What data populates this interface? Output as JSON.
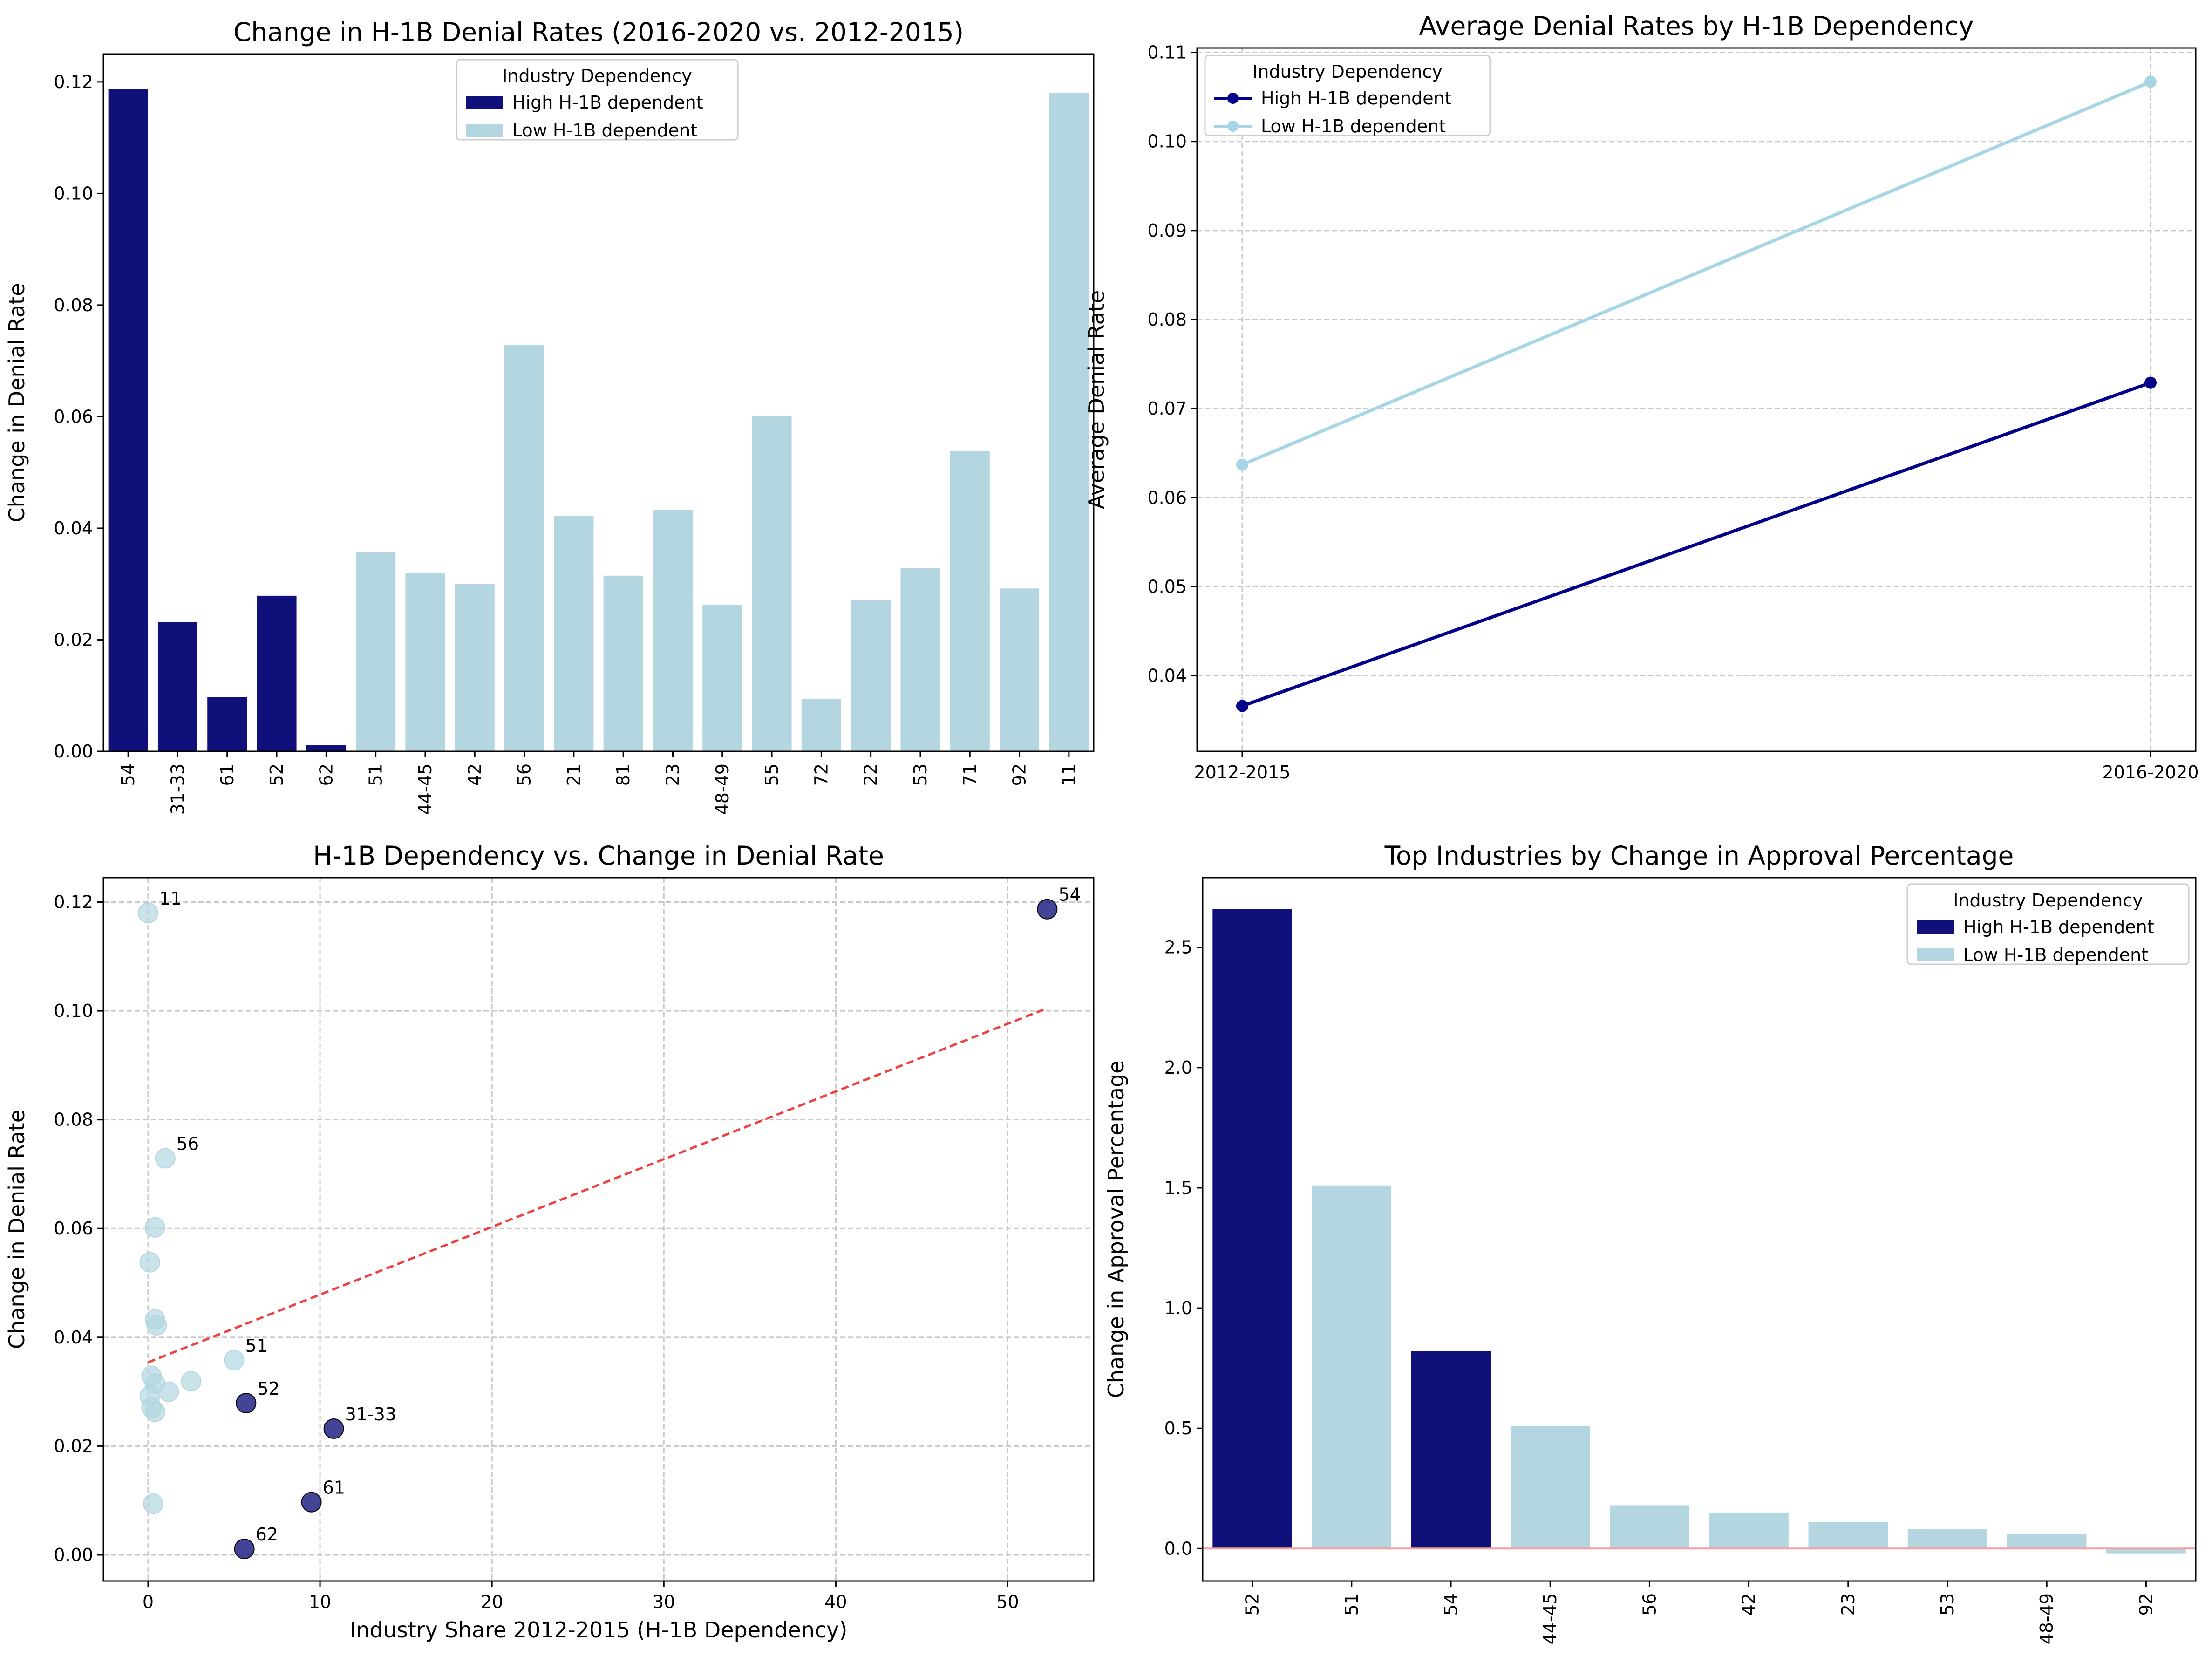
{
  "colors": {
    "high": "#10107a",
    "low": "#b3d6e0",
    "low_line": "#a6d5e6",
    "high_line": "#00008b",
    "trend": "#f04040",
    "zero_line": "#f5a0a0",
    "grid": "#c8c8c8"
  },
  "chart_data": [
    {
      "type": "bar",
      "title": "Change in H-1B Denial Rates (2016-2020 vs. 2012-2015)",
      "xlabel": "",
      "ylabel": "Change in Denial Rate",
      "ylim": [
        0,
        0.125
      ],
      "yticks": [
        0.0,
        0.02,
        0.04,
        0.06,
        0.08,
        0.1,
        0.12
      ],
      "ytick_labels": [
        "0.00",
        "0.02",
        "0.04",
        "0.06",
        "0.08",
        "0.10",
        "0.12"
      ],
      "grid": false,
      "categories": [
        "54",
        "31-33",
        "61",
        "52",
        "62",
        "51",
        "44-45",
        "42",
        "56",
        "21",
        "81",
        "23",
        "48-49",
        "55",
        "72",
        "22",
        "53",
        "71",
        "92",
        "11"
      ],
      "values": [
        0.1187,
        0.0232,
        0.0097,
        0.0279,
        0.0011,
        0.0358,
        0.0319,
        0.03,
        0.0729,
        0.0422,
        0.0315,
        0.0433,
        0.0263,
        0.0602,
        0.0094,
        0.0271,
        0.0329,
        0.0538,
        0.0292,
        0.118
      ],
      "groups": [
        "high",
        "high",
        "high",
        "high",
        "high",
        "low",
        "low",
        "low",
        "low",
        "low",
        "low",
        "low",
        "low",
        "low",
        "low",
        "low",
        "low",
        "low",
        "low",
        "low"
      ],
      "legend": {
        "title": "Industry Dependency",
        "placement": "top-center",
        "entries": [
          "High H-1B dependent",
          "Low H-1B dependent"
        ]
      }
    },
    {
      "type": "line",
      "title": "Average Denial Rates by H-1B Dependency",
      "xlabel": "",
      "ylabel": "Average Denial Rate",
      "ylim": [
        0.0315,
        0.1105
      ],
      "yticks": [
        0.04,
        0.05,
        0.06,
        0.07,
        0.08,
        0.09,
        0.1,
        0.11
      ],
      "ytick_labels": [
        "0.04",
        "0.05",
        "0.06",
        "0.07",
        "0.08",
        "0.09",
        "0.10",
        "0.11"
      ],
      "grid": true,
      "categories": [
        "2012-2015",
        "2016-2020"
      ],
      "series": [
        {
          "name": "High H-1B dependent",
          "group": "high",
          "values": [
            0.0366,
            0.0729
          ]
        },
        {
          "name": "Low H-1B dependent",
          "group": "low",
          "values": [
            0.0637,
            0.1067
          ]
        }
      ],
      "legend": {
        "title": "Industry Dependency",
        "placement": "top-left",
        "entries": [
          "High H-1B dependent",
          "Low H-1B dependent"
        ]
      }
    },
    {
      "type": "scatter",
      "title": "H-1B Dependency vs. Change in Denial Rate",
      "xlabel": "Industry Share 2012-2015 (H-1B Dependency)",
      "ylabel": "Change in Denial Rate",
      "xlim": [
        -2.6,
        55
      ],
      "ylim": [
        -0.0048,
        0.1245
      ],
      "xticks": [
        0,
        10,
        20,
        30,
        40,
        50
      ],
      "xtick_labels": [
        "0",
        "10",
        "20",
        "30",
        "40",
        "50"
      ],
      "yticks": [
        0.0,
        0.02,
        0.04,
        0.06,
        0.08,
        0.1,
        0.12
      ],
      "ytick_labels": [
        "0.00",
        "0.02",
        "0.04",
        "0.06",
        "0.08",
        "0.10",
        "0.12"
      ],
      "grid": true,
      "points": [
        {
          "x": 52.3,
          "y": 0.1187,
          "group": "high",
          "label": "54"
        },
        {
          "x": 10.8,
          "y": 0.0232,
          "group": "high",
          "label": "31-33"
        },
        {
          "x": 9.5,
          "y": 0.0097,
          "group": "high",
          "label": "61"
        },
        {
          "x": 5.7,
          "y": 0.0279,
          "group": "high",
          "label": "52"
        },
        {
          "x": 5.6,
          "y": 0.0011,
          "group": "high",
          "label": "62"
        },
        {
          "x": 0.0,
          "y": 0.118,
          "group": "low",
          "label": "11"
        },
        {
          "x": 1.0,
          "y": 0.0729,
          "group": "low",
          "label": "56"
        },
        {
          "x": 5.0,
          "y": 0.0358,
          "group": "low",
          "label": "51"
        },
        {
          "x": 0.4,
          "y": 0.0602,
          "group": "low",
          "label": ""
        },
        {
          "x": 0.1,
          "y": 0.0538,
          "group": "low",
          "label": ""
        },
        {
          "x": 0.4,
          "y": 0.0433,
          "group": "low",
          "label": ""
        },
        {
          "x": 0.5,
          "y": 0.0422,
          "group": "low",
          "label": ""
        },
        {
          "x": 0.2,
          "y": 0.0329,
          "group": "low",
          "label": ""
        },
        {
          "x": 0.4,
          "y": 0.0315,
          "group": "low",
          "label": ""
        },
        {
          "x": 2.5,
          "y": 0.0319,
          "group": "low",
          "label": ""
        },
        {
          "x": 1.2,
          "y": 0.03,
          "group": "low",
          "label": ""
        },
        {
          "x": 0.1,
          "y": 0.0292,
          "group": "low",
          "label": ""
        },
        {
          "x": 0.2,
          "y": 0.0271,
          "group": "low",
          "label": ""
        },
        {
          "x": 0.4,
          "y": 0.0263,
          "group": "low",
          "label": ""
        },
        {
          "x": 0.3,
          "y": 0.0094,
          "group": "low",
          "label": ""
        }
      ],
      "trendline": {
        "x": [
          0.0,
          52.3
        ],
        "y": [
          0.0354,
          0.1005
        ]
      }
    },
    {
      "type": "bar",
      "title": "Top Industries by Change in Approval Percentage",
      "xlabel": "",
      "ylabel": "Change in Approval Percentage",
      "ylim": [
        -0.135,
        2.79
      ],
      "yticks": [
        0.0,
        0.5,
        1.0,
        1.5,
        2.0,
        2.5
      ],
      "ytick_labels": [
        "0.0",
        "0.5",
        "1.0",
        "1.5",
        "2.0",
        "2.5"
      ],
      "grid": false,
      "categories": [
        "52",
        "51",
        "54",
        "44-45",
        "56",
        "42",
        "23",
        "53",
        "48-49",
        "92"
      ],
      "values": [
        2.66,
        1.51,
        0.82,
        0.51,
        0.18,
        0.15,
        0.11,
        0.08,
        0.06,
        -0.02
      ],
      "groups": [
        "high",
        "low",
        "high",
        "low",
        "low",
        "low",
        "low",
        "low",
        "low",
        "low"
      ],
      "legend": {
        "title": "Industry Dependency",
        "placement": "top-right",
        "entries": [
          "High H-1B dependent",
          "Low H-1B dependent"
        ]
      }
    }
  ]
}
